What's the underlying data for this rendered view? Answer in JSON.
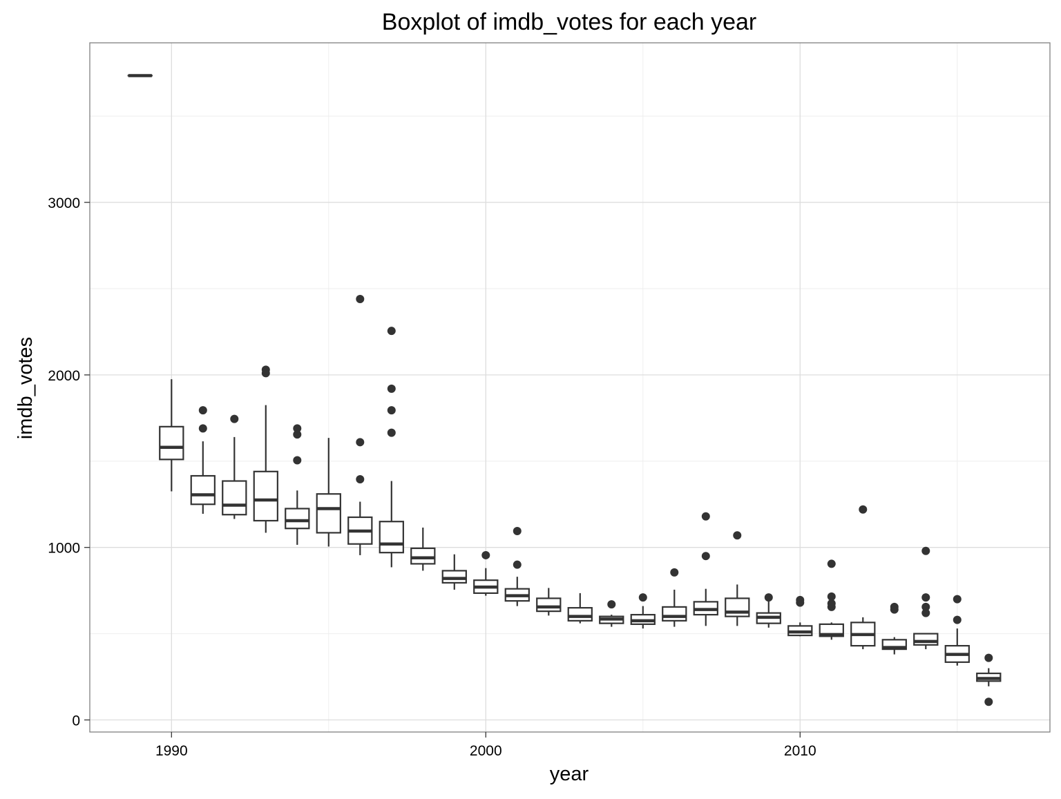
{
  "chart_data": {
    "type": "boxplot",
    "title": "Boxplot of imdb_votes for each year",
    "xlabel": "year",
    "ylabel": "imdb_votes",
    "xlim": [
      1987.4,
      2017.95
    ],
    "ylim": [
      -70,
      3925
    ],
    "x_ticks": [
      1990,
      2000,
      2010
    ],
    "x_minor_ticks": [
      1995,
      2005,
      2015
    ],
    "y_ticks": [
      0,
      1000,
      2000,
      3000
    ],
    "y_minor_ticks": [
      500,
      1500,
      2500,
      3500
    ],
    "grid": true,
    "legend": "none",
    "colors": {
      "box": "#333333",
      "outlier": "#333333",
      "grid_major": "#dddddd",
      "grid_minor": "#eeeeee",
      "panel_border": "#7f7f7f",
      "background": "#ffffff"
    },
    "boxes": [
      {
        "year": 1989,
        "lower_whisker": 3735,
        "q1": 3735,
        "median": 3735,
        "q3": 3735,
        "upper_whisker": 3735,
        "outliers": []
      },
      {
        "year": 1990,
        "lower_whisker": 1325,
        "q1": 1510,
        "median": 1580,
        "q3": 1700,
        "upper_whisker": 1975,
        "outliers": []
      },
      {
        "year": 1991,
        "lower_whisker": 1195,
        "q1": 1250,
        "median": 1305,
        "q3": 1415,
        "upper_whisker": 1615,
        "outliers": [
          1690,
          1795
        ]
      },
      {
        "year": 1992,
        "lower_whisker": 1165,
        "q1": 1190,
        "median": 1245,
        "q3": 1385,
        "upper_whisker": 1640,
        "outliers": [
          1745
        ]
      },
      {
        "year": 1993,
        "lower_whisker": 1085,
        "q1": 1155,
        "median": 1275,
        "q3": 1440,
        "upper_whisker": 1825,
        "outliers": [
          2010,
          2030
        ]
      },
      {
        "year": 1994,
        "lower_whisker": 1015,
        "q1": 1110,
        "median": 1155,
        "q3": 1225,
        "upper_whisker": 1330,
        "outliers": [
          1505,
          1655,
          1690
        ]
      },
      {
        "year": 1995,
        "lower_whisker": 1005,
        "q1": 1085,
        "median": 1225,
        "q3": 1310,
        "upper_whisker": 1635,
        "outliers": []
      },
      {
        "year": 1996,
        "lower_whisker": 955,
        "q1": 1020,
        "median": 1095,
        "q3": 1175,
        "upper_whisker": 1265,
        "outliers": [
          1395,
          1610,
          2440
        ]
      },
      {
        "year": 1997,
        "lower_whisker": 885,
        "q1": 970,
        "median": 1020,
        "q3": 1150,
        "upper_whisker": 1385,
        "outliers": [
          1665,
          1795,
          1920,
          2255
        ]
      },
      {
        "year": 1998,
        "lower_whisker": 865,
        "q1": 905,
        "median": 940,
        "q3": 995,
        "upper_whisker": 1115,
        "outliers": []
      },
      {
        "year": 1999,
        "lower_whisker": 755,
        "q1": 795,
        "median": 820,
        "q3": 865,
        "upper_whisker": 960,
        "outliers": []
      },
      {
        "year": 2000,
        "lower_whisker": 720,
        "q1": 735,
        "median": 770,
        "q3": 810,
        "upper_whisker": 880,
        "outliers": [
          955
        ]
      },
      {
        "year": 2001,
        "lower_whisker": 660,
        "q1": 690,
        "median": 720,
        "q3": 760,
        "upper_whisker": 830,
        "outliers": [
          900,
          1095
        ]
      },
      {
        "year": 2002,
        "lower_whisker": 605,
        "q1": 630,
        "median": 655,
        "q3": 705,
        "upper_whisker": 765,
        "outliers": []
      },
      {
        "year": 2003,
        "lower_whisker": 560,
        "q1": 575,
        "median": 600,
        "q3": 650,
        "upper_whisker": 735,
        "outliers": []
      },
      {
        "year": 2004,
        "lower_whisker": 540,
        "q1": 560,
        "median": 585,
        "q3": 600,
        "upper_whisker": 610,
        "outliers": [
          670
        ]
      },
      {
        "year": 2005,
        "lower_whisker": 530,
        "q1": 555,
        "median": 575,
        "q3": 610,
        "upper_whisker": 660,
        "outliers": [
          710
        ]
      },
      {
        "year": 2006,
        "lower_whisker": 540,
        "q1": 575,
        "median": 600,
        "q3": 655,
        "upper_whisker": 755,
        "outliers": [
          855
        ]
      },
      {
        "year": 2007,
        "lower_whisker": 545,
        "q1": 610,
        "median": 640,
        "q3": 685,
        "upper_whisker": 760,
        "outliers": [
          950,
          1180
        ]
      },
      {
        "year": 2008,
        "lower_whisker": 545,
        "q1": 600,
        "median": 625,
        "q3": 705,
        "upper_whisker": 785,
        "outliers": [
          1070
        ]
      },
      {
        "year": 2009,
        "lower_whisker": 535,
        "q1": 560,
        "median": 595,
        "q3": 620,
        "upper_whisker": 695,
        "outliers": [
          710
        ]
      },
      {
        "year": 2010,
        "lower_whisker": 485,
        "q1": 490,
        "median": 510,
        "q3": 545,
        "upper_whisker": 565,
        "outliers": [
          680,
          695
        ]
      },
      {
        "year": 2011,
        "lower_whisker": 465,
        "q1": 485,
        "median": 495,
        "q3": 555,
        "upper_whisker": 565,
        "outliers": [
          655,
          675,
          715,
          905
        ]
      },
      {
        "year": 2012,
        "lower_whisker": 410,
        "q1": 430,
        "median": 495,
        "q3": 565,
        "upper_whisker": 595,
        "outliers": [
          1220
        ]
      },
      {
        "year": 2013,
        "lower_whisker": 380,
        "q1": 410,
        "median": 420,
        "q3": 465,
        "upper_whisker": 480,
        "outliers": [
          640,
          655
        ]
      },
      {
        "year": 2014,
        "lower_whisker": 410,
        "q1": 435,
        "median": 455,
        "q3": 500,
        "upper_whisker": 500,
        "outliers": [
          620,
          655,
          710,
          980
        ]
      },
      {
        "year": 2015,
        "lower_whisker": 315,
        "q1": 335,
        "median": 380,
        "q3": 430,
        "upper_whisker": 530,
        "outliers": [
          580,
          700
        ]
      },
      {
        "year": 2016,
        "lower_whisker": 195,
        "q1": 225,
        "median": 240,
        "q3": 270,
        "upper_whisker": 300,
        "outliers": [
          105,
          360
        ]
      }
    ]
  }
}
